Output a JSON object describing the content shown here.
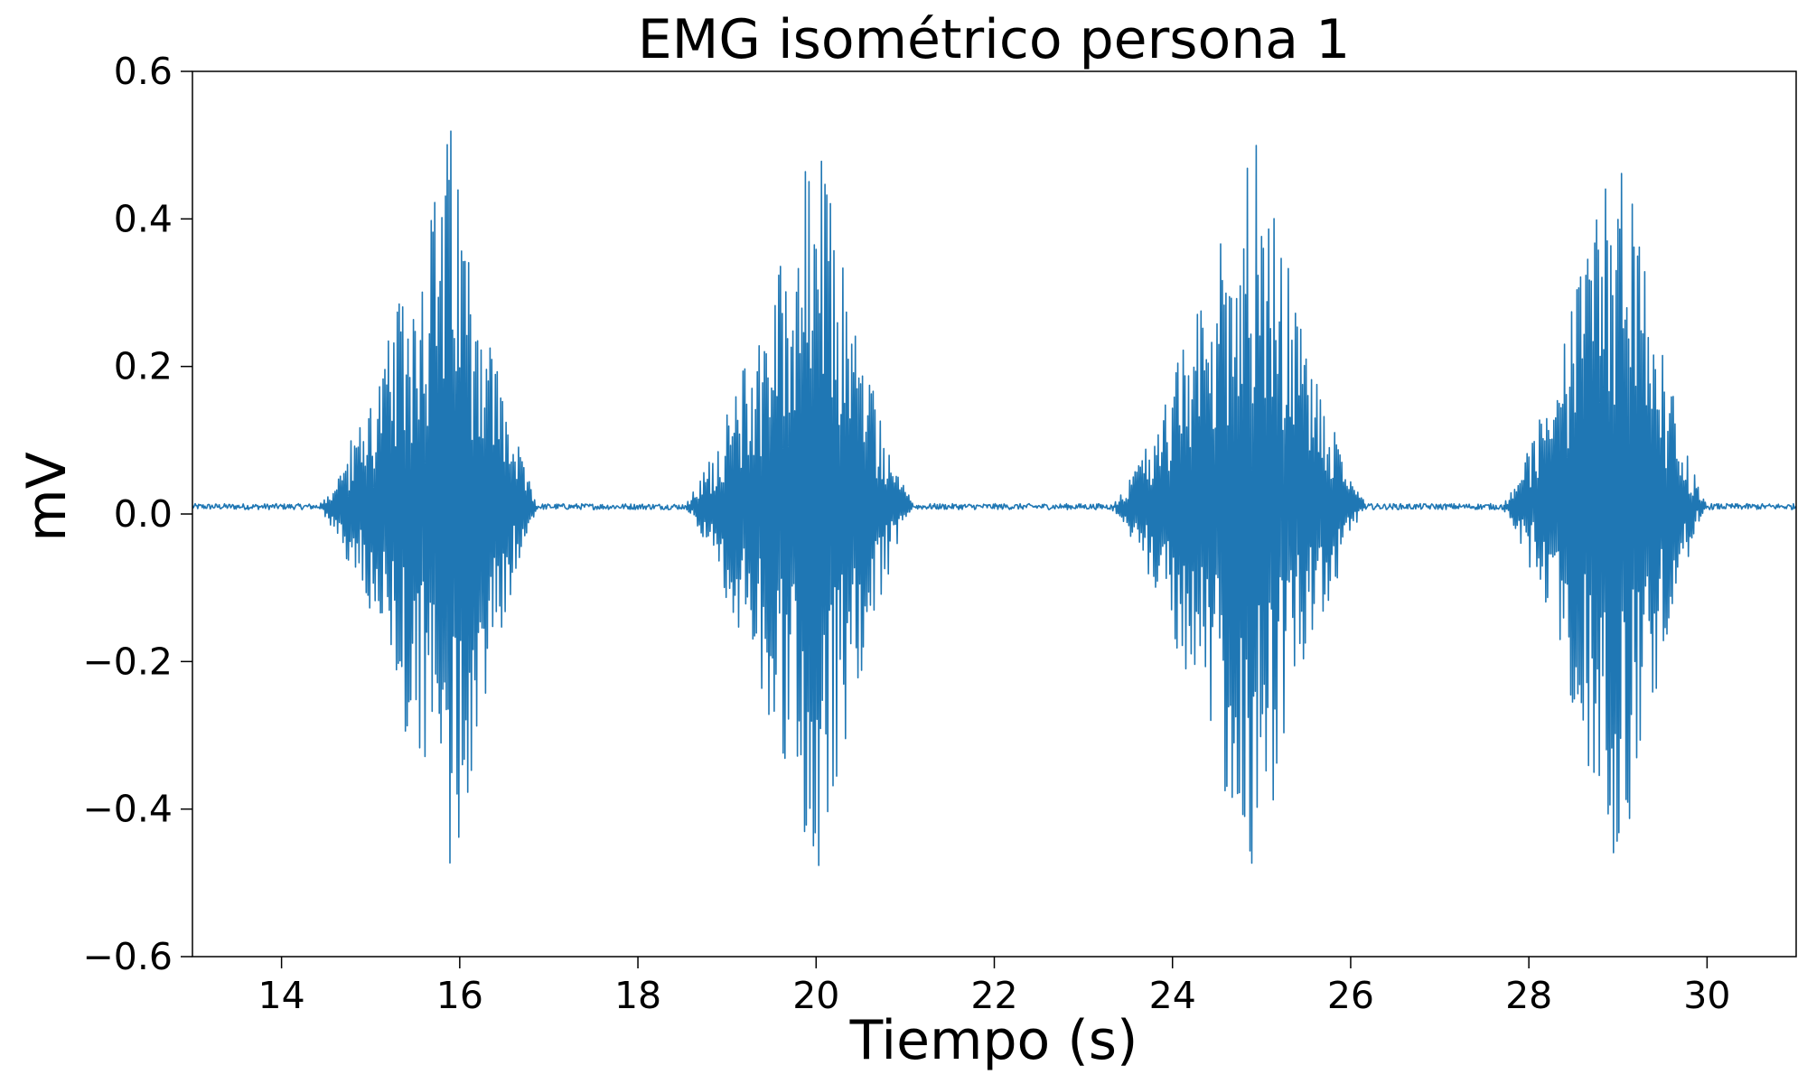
{
  "chart_data": {
    "type": "line",
    "title": "EMG isométrico persona 1",
    "xlabel": "Tiempo (s)",
    "ylabel": "mV",
    "xlim": [
      13,
      31
    ],
    "ylim": [
      -0.6,
      0.6
    ],
    "grid": false,
    "x_ticks": [
      14,
      16,
      18,
      20,
      22,
      24,
      26,
      28,
      30
    ],
    "y_ticks": [
      -0.6,
      -0.4,
      -0.2,
      0.0,
      0.2,
      0.4,
      0.6
    ],
    "x_tick_labels": [
      "14",
      "16",
      "18",
      "20",
      "22",
      "24",
      "26",
      "28",
      "30"
    ],
    "y_tick_labels": [
      "−0.6",
      "−0.4",
      "−0.2",
      "0.0",
      "0.2",
      "0.4",
      "0.6"
    ],
    "series": [
      {
        "name": "EMG",
        "color": "#1f77b4",
        "baseline": 0.01,
        "baseline_noise": 0.004,
        "clip_max": 0.52,
        "clip_min": -0.5,
        "sample_step": 0.01,
        "bursts": [
          {
            "start": 14.4,
            "peak": 15.9,
            "end": 16.9,
            "peak_amplitude": 0.52
          },
          {
            "start": 18.5,
            "peak": 20.0,
            "end": 21.1,
            "peak_amplitude": 0.52
          },
          {
            "start": 23.3,
            "peak": 24.9,
            "end": 26.2,
            "peak_amplitude": 0.52
          },
          {
            "start": 27.7,
            "peak": 29.0,
            "end": 30.0,
            "peak_amplitude": 0.52
          }
        ]
      }
    ]
  }
}
